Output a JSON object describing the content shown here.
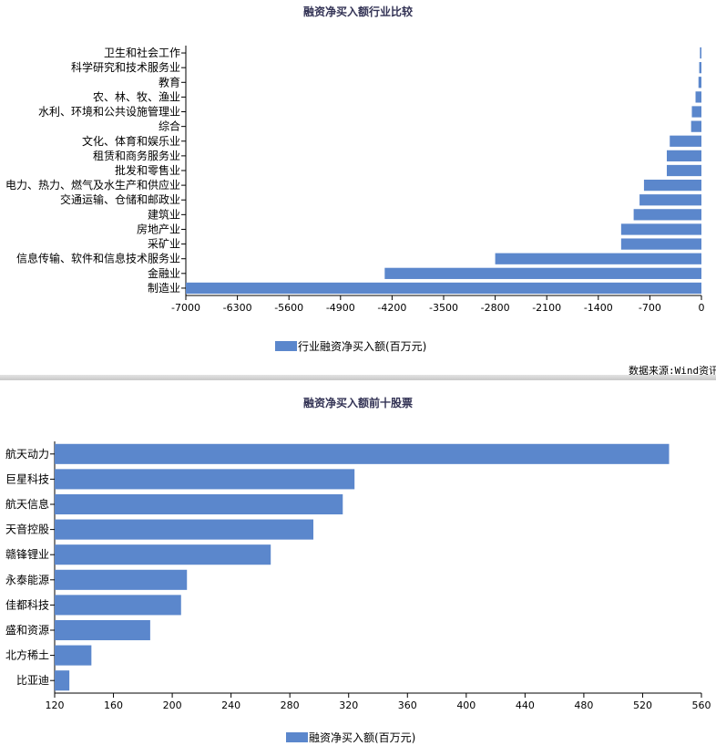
{
  "colors": {
    "bar": "#5b87cc",
    "axis": "#000000",
    "title": "#333355"
  },
  "source_text": "数据来源:Wind资讯",
  "chart_data": [
    {
      "type": "bar",
      "orientation": "horizontal",
      "title": "融资净买入额行业比较",
      "categories": [
        "卫生和社会工作",
        "科学研究和技术服务业",
        "教育",
        "农、林、牧、渔业",
        "水利、环境和公共设施管理业",
        "综合",
        "文化、体育和娱乐业",
        "租赁和商务服务业",
        "批发和零售业",
        "电力、热力、燃气及水生产和供应业",
        "交通运输、仓储和邮政业",
        "建筑业",
        "房地产业",
        "采矿业",
        "信息传输、软件和信息技术服务业",
        "金融业",
        "制造业"
      ],
      "series": [
        {
          "name": "行业融资净买入额(百万元)",
          "values": [
            -20,
            -30,
            -40,
            -80,
            -130,
            -140,
            -430,
            -470,
            -470,
            -780,
            -840,
            -920,
            -1090,
            -1090,
            -2800,
            -4300,
            -7000
          ]
        }
      ],
      "xlim": [
        -7000,
        0
      ],
      "xticks": [
        -7000,
        -6300,
        -5600,
        -4900,
        -4200,
        -3500,
        -2800,
        -2100,
        -1400,
        -700,
        0
      ],
      "legend_position": "bottom"
    },
    {
      "type": "bar",
      "orientation": "horizontal",
      "title": "融资净买入额前十股票",
      "categories": [
        "航天动力",
        "巨星科技",
        "航天信息",
        "天音控股",
        "赣锋锂业",
        "永泰能源",
        "佳都科技",
        "盛和资源",
        "北方稀土",
        "比亚迪"
      ],
      "series": [
        {
          "name": "融资净买入额(百万元)",
          "values": [
            538,
            324,
            316,
            296,
            267,
            210,
            206,
            185,
            145,
            130
          ]
        }
      ],
      "xlim": [
        120,
        560
      ],
      "xticks": [
        120,
        160,
        200,
        240,
        280,
        320,
        360,
        400,
        440,
        480,
        520,
        560
      ],
      "legend_position": "bottom"
    }
  ]
}
